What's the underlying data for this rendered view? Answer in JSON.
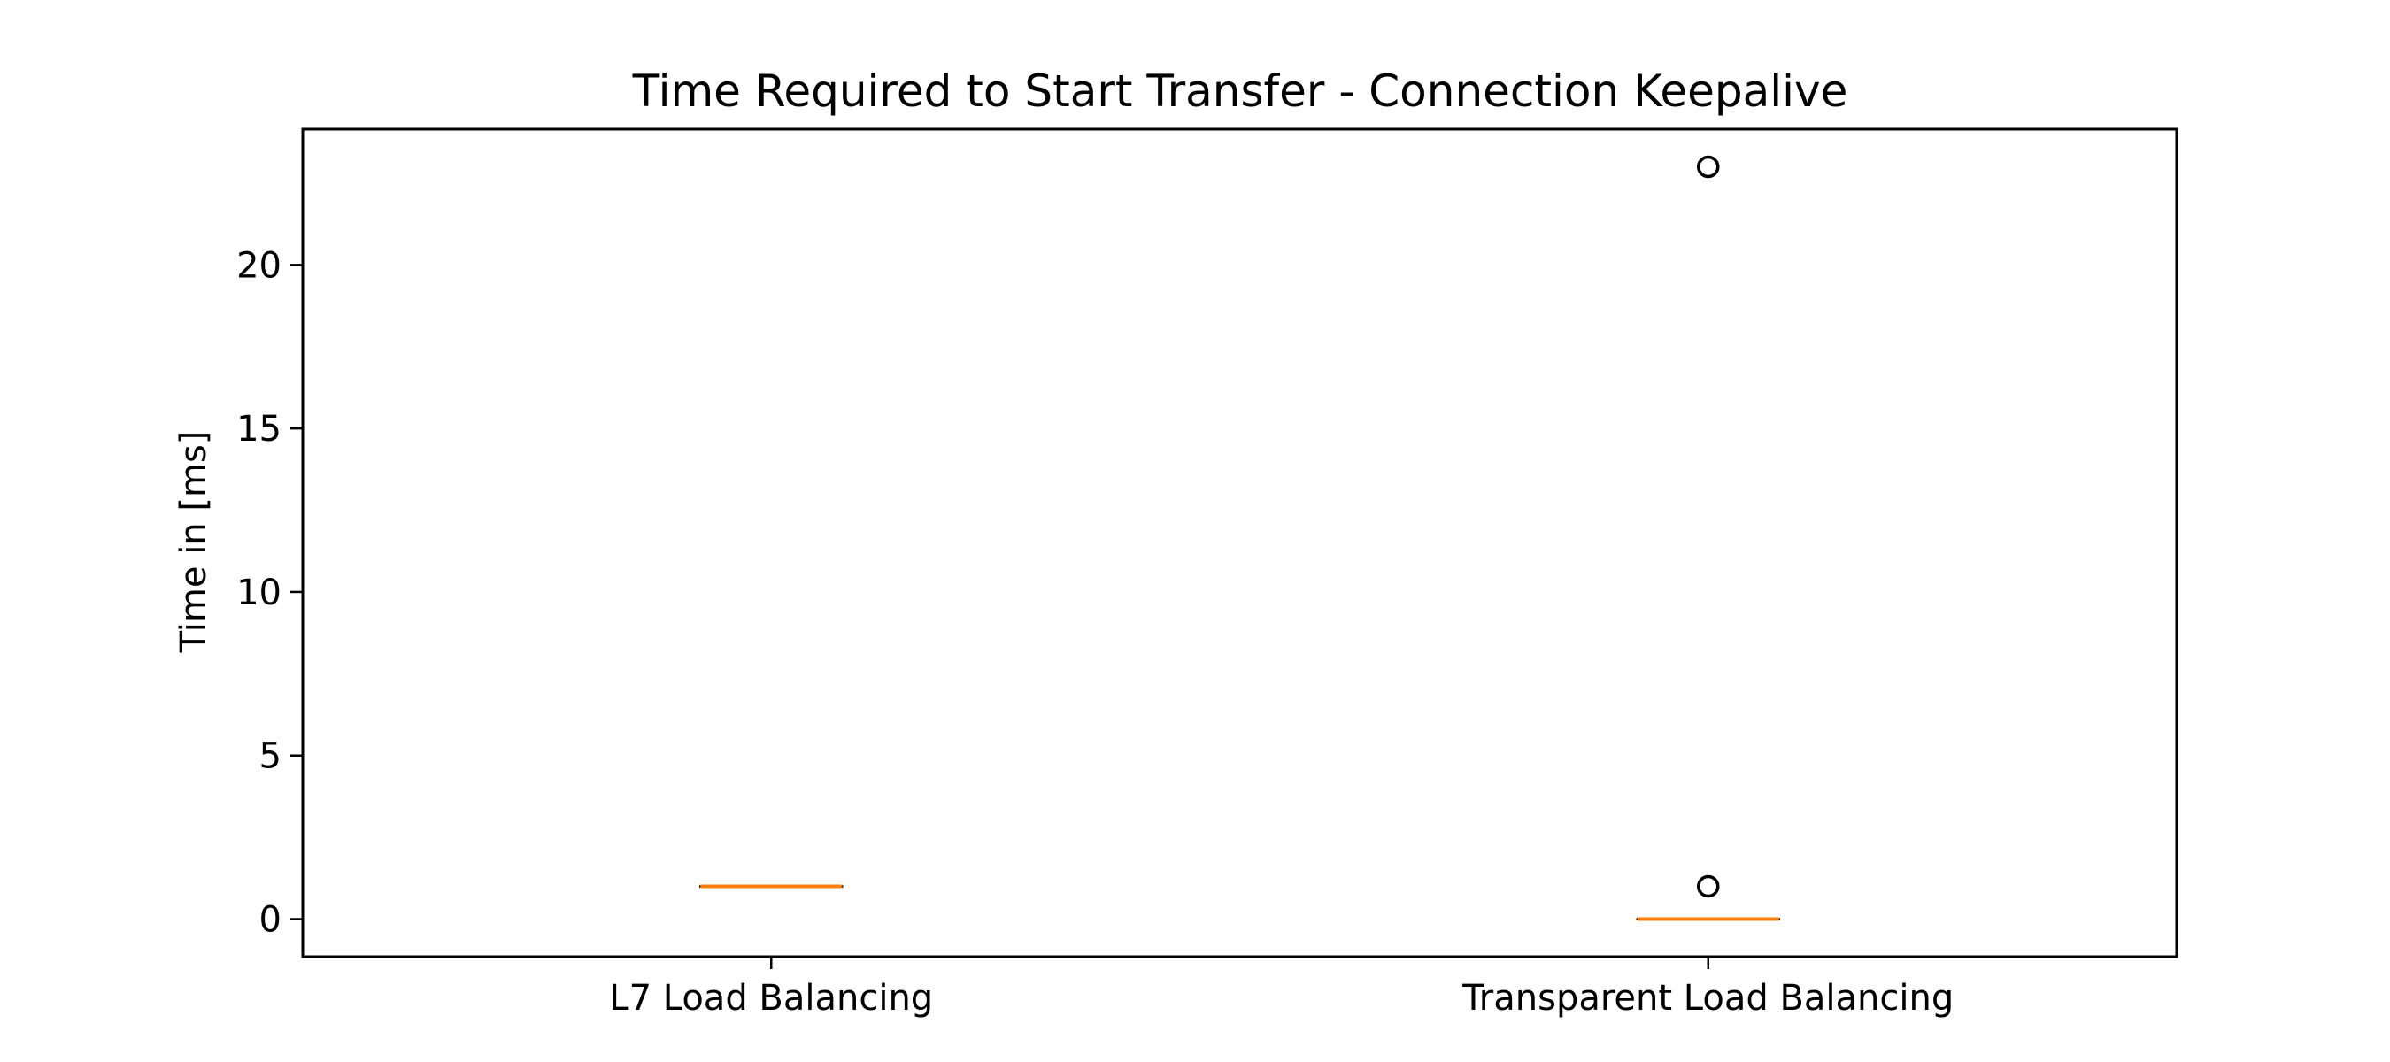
{
  "chart_data": {
    "type": "box",
    "title": "Time Required to Start Transfer - Connection Keepalive",
    "xlabel": "",
    "ylabel": "Time in [ms]",
    "categories": [
      "L7 Load Balancing",
      "Transparent Load Balancing"
    ],
    "ylim": [
      -1.15,
      24.15
    ],
    "yticks": [
      0,
      5,
      10,
      15,
      20
    ],
    "boxes": [
      {
        "category": "L7 Load Balancing",
        "q1": 1,
        "median": 1,
        "q3": 1,
        "whisker_low": 1,
        "whisker_high": 1,
        "outliers": []
      },
      {
        "category": "Transparent Load Balancing",
        "q1": 0,
        "median": 0,
        "q3": 0,
        "whisker_low": 0,
        "whisker_high": 0,
        "outliers": [
          1,
          23
        ]
      }
    ],
    "grid": false,
    "colors": {
      "median": "#ff7f0e",
      "box": "#000000",
      "outlier": "#000000",
      "frame": "#000000"
    }
  }
}
